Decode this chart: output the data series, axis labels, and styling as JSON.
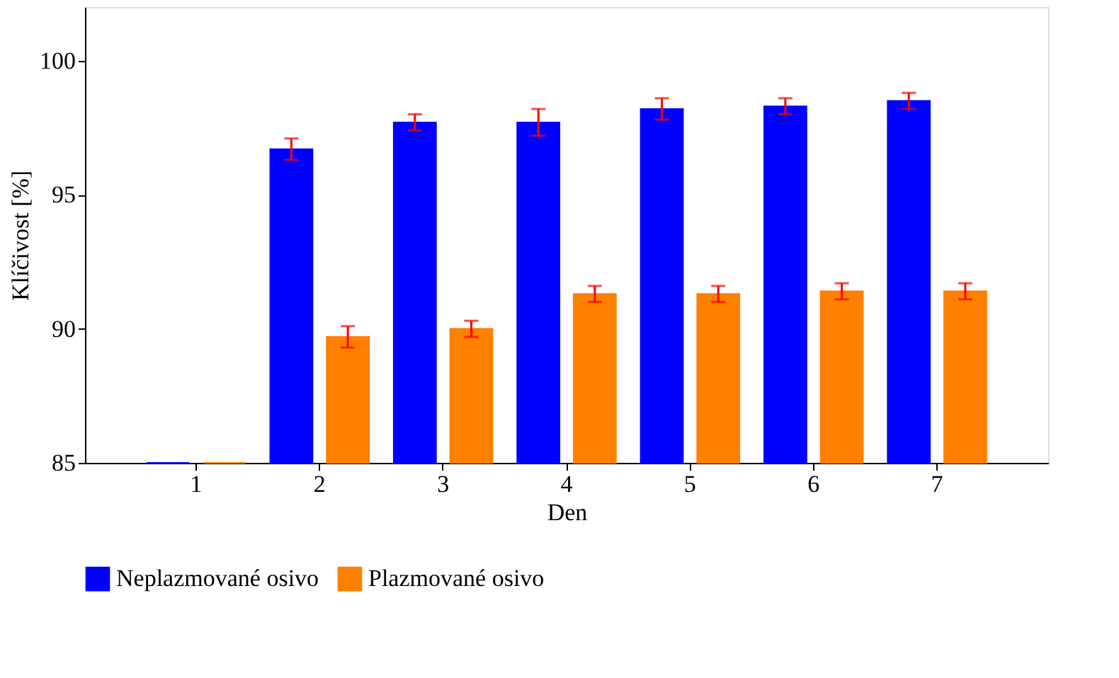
{
  "chart_data": {
    "type": "bar",
    "xlabel": "Den",
    "ylabel": "Klíčivost [%]",
    "categories": [
      "1",
      "2",
      "3",
      "4",
      "5",
      "6",
      "7"
    ],
    "series": [
      {
        "name": "Neplazmované osivo",
        "color": "#0000ff",
        "values": [
          85,
          96.7,
          97.7,
          97.7,
          98.2,
          98.3,
          98.5
        ],
        "errors": [
          null,
          0.4,
          0.3,
          0.5,
          0.4,
          0.3,
          0.3
        ]
      },
      {
        "name": "Plazmované osivo",
        "color": "#ff8000",
        "values": [
          85,
          89.7,
          90.0,
          91.3,
          91.3,
          91.4,
          91.4
        ],
        "errors": [
          null,
          0.4,
          0.3,
          0.3,
          0.3,
          0.3,
          0.3
        ]
      }
    ],
    "ylim": [
      85,
      102
    ],
    "yticks": [
      85,
      90,
      95,
      100
    ],
    "grid": false,
    "legend": "bottom"
  }
}
